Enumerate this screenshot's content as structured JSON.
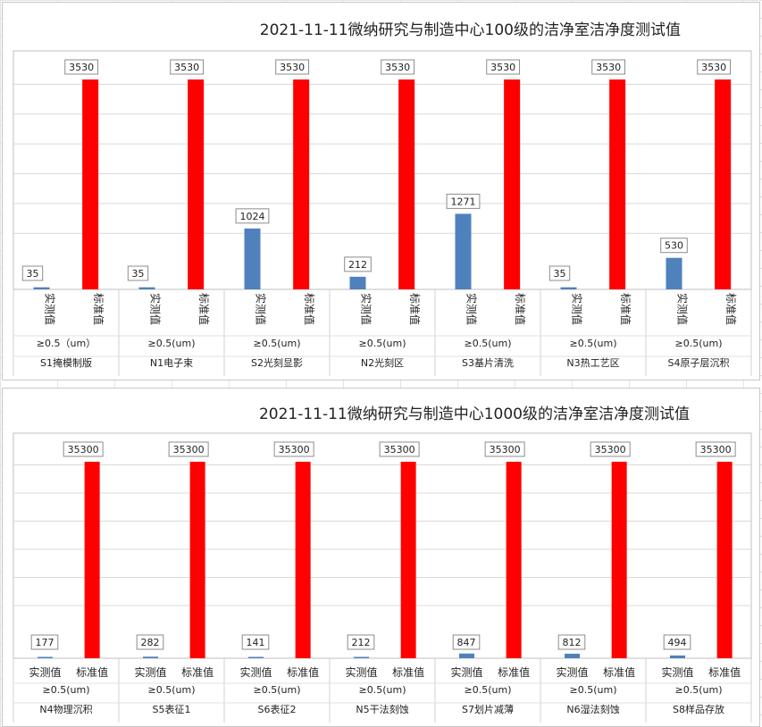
{
  "colors": {
    "measured": "#4f81bd",
    "standard": "#ff0000",
    "grid": "#d9d9d9"
  },
  "chart_data": [
    {
      "type": "bar",
      "title": "2021-11-11微纳研究与制造中心100级的洁净室洁净度测试值",
      "ylim": [
        0,
        3530
      ],
      "grid": true,
      "legend": "none",
      "categories": [
        {
          "kind": [
            "实测值",
            "标准值"
          ],
          "size": "≥0.5（um）",
          "area": "S1掩模制版"
        },
        {
          "kind": [
            "实测值",
            "标准值"
          ],
          "size": "≥0.5(um)",
          "area": "N1电子束"
        },
        {
          "kind": [
            "实测值",
            "标准值"
          ],
          "size": "≥0.5(um)",
          "area": "S2光刻显影"
        },
        {
          "kind": [
            "实测值",
            "标准值"
          ],
          "size": "≥0.5(um)",
          "area": "N2光刻区"
        },
        {
          "kind": [
            "实测值",
            "标准值"
          ],
          "size": "≥0.5(um)",
          "area": "S3基片清洗"
        },
        {
          "kind": [
            "实测值",
            "标准值"
          ],
          "size": "≥0.5(um)",
          "area": "N3热工艺区"
        },
        {
          "kind": [
            "实测值",
            "标准值"
          ],
          "size": "≥0.5(um)",
          "area": "S4原子层沉积"
        }
      ],
      "measured": [
        35,
        35,
        1024,
        212,
        1271,
        35,
        530
      ],
      "standard": [
        3530,
        3530,
        3530,
        3530,
        3530,
        3530,
        3530
      ],
      "xlabel_rotated": true
    },
    {
      "type": "bar",
      "title": "2021-11-11微纳研究与制造中心1000级的洁净室洁净度测试值",
      "ylim": [
        0,
        35300
      ],
      "grid": true,
      "legend": "none",
      "categories": [
        {
          "kind": [
            "实测值",
            "标准值"
          ],
          "size": "≥0.5(um)",
          "area": "N4物理沉积"
        },
        {
          "kind": [
            "实测值",
            "标准值"
          ],
          "size": "≥0.5(um)",
          "area": "S5表征1"
        },
        {
          "kind": [
            "实测值",
            "标准值"
          ],
          "size": "≥0.5(um)",
          "area": "S6表征2"
        },
        {
          "kind": [
            "实测值",
            "标准值"
          ],
          "size": "≥0.5(um)",
          "area": "N5干法刻蚀"
        },
        {
          "kind": [
            "实测值",
            "标准值"
          ],
          "size": "≥0.5(um)",
          "area": "S7划片减薄"
        },
        {
          "kind": [
            "实测值",
            "标准值"
          ],
          "size": "≥0.5(um)",
          "area": "N6湿法刻蚀"
        },
        {
          "kind": [
            "实测值",
            "标准值"
          ],
          "size": "≥0.5(um)",
          "area": "S8样品存放"
        }
      ],
      "measured": [
        177,
        282,
        141,
        212,
        847,
        812,
        494
      ],
      "standard": [
        35300,
        35300,
        35300,
        35300,
        35300,
        35300,
        35300
      ],
      "xlabel_rotated": false
    }
  ]
}
